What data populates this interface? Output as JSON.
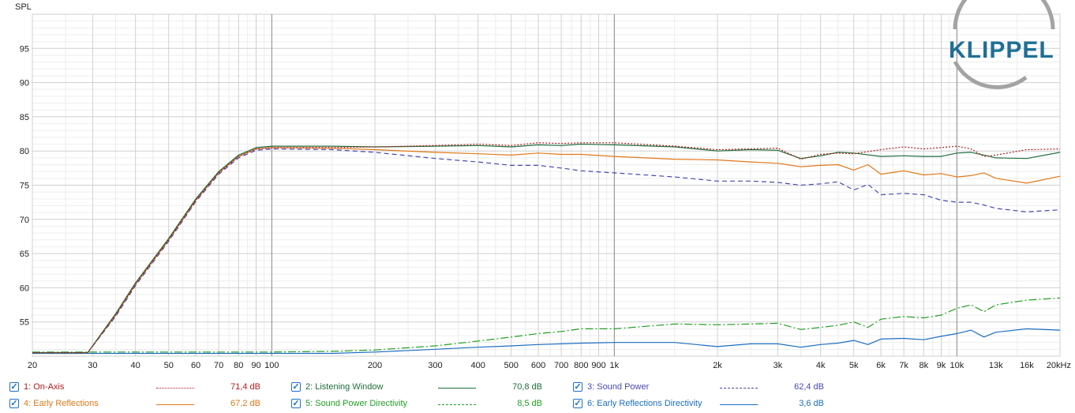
{
  "chart_data": {
    "type": "line",
    "ylabel": "SPL",
    "xscale": "log",
    "xlim": [
      20,
      20000
    ],
    "ylim": [
      50,
      100
    ],
    "yticks": [
      55,
      60,
      65,
      70,
      75,
      80,
      85,
      90,
      95
    ],
    "xtick_labels": [
      {
        "x": 20,
        "label": "20"
      },
      {
        "x": 30,
        "label": "30"
      },
      {
        "x": 40,
        "label": "40"
      },
      {
        "x": 50,
        "label": "50"
      },
      {
        "x": 60,
        "label": "60"
      },
      {
        "x": 70,
        "label": "70"
      },
      {
        "x": 80,
        "label": "80"
      },
      {
        "x": 90,
        "label": "90"
      },
      {
        "x": 100,
        "label": "100"
      },
      {
        "x": 200,
        "label": "200"
      },
      {
        "x": 300,
        "label": "300"
      },
      {
        "x": 400,
        "label": "400"
      },
      {
        "x": 500,
        "label": "500"
      },
      {
        "x": 600,
        "label": "600"
      },
      {
        "x": 700,
        "label": "700"
      },
      {
        "x": 800,
        "label": "800"
      },
      {
        "x": 900,
        "label": "900"
      },
      {
        "x": 1000,
        "label": "1k"
      },
      {
        "x": 2000,
        "label": "2k"
      },
      {
        "x": 3000,
        "label": "3k"
      },
      {
        "x": 4000,
        "label": "4k"
      },
      {
        "x": 5000,
        "label": "5k"
      },
      {
        "x": 6000,
        "label": "6k"
      },
      {
        "x": 7000,
        "label": "7k"
      },
      {
        "x": 8000,
        "label": "8k"
      },
      {
        "x": 9000,
        "label": "9k"
      },
      {
        "x": 10000,
        "label": "10k"
      },
      {
        "x": 13000,
        "label": "13k"
      },
      {
        "x": 16000,
        "label": "16k"
      },
      {
        "x": 20000,
        "label": "20kHz"
      }
    ],
    "grid": true,
    "logo": "KLIPPEL",
    "series": [
      {
        "name": "1: On-Axis",
        "value": "71,4 dB",
        "color": "#b01c1c",
        "dash": "2,2",
        "x": [
          20,
          29,
          35,
          40,
          50,
          60,
          70,
          80,
          90,
          100,
          150,
          200,
          300,
          400,
          500,
          600,
          700,
          800,
          1000,
          1500,
          2000,
          2500,
          3000,
          3500,
          4000,
          4500,
          5000,
          6000,
          7000,
          8000,
          9000,
          10000,
          11000,
          12000,
          13000,
          16000,
          20000
        ],
        "y": [
          50.5,
          50.5,
          56,
          60.5,
          67,
          72.8,
          76.8,
          79.2,
          80.3,
          80.5,
          80.5,
          80.6,
          80.8,
          81,
          80.8,
          81.2,
          81.1,
          81.2,
          81.2,
          80.7,
          80.2,
          80.3,
          80.4,
          78.8,
          79.5,
          79.7,
          79.6,
          80.2,
          80.6,
          80.3,
          80.5,
          80.7,
          80.3,
          79.2,
          79.4,
          80.2,
          80.3
        ]
      },
      {
        "name": "2: Listening Window",
        "value": "70,8 dB",
        "color": "#1e6e3c",
        "dash": "",
        "x": [
          20,
          29,
          35,
          40,
          50,
          60,
          70,
          80,
          90,
          100,
          150,
          200,
          300,
          400,
          500,
          600,
          700,
          800,
          1000,
          1500,
          2000,
          2500,
          3000,
          3500,
          4000,
          4500,
          5000,
          6000,
          7000,
          8000,
          9000,
          10000,
          11000,
          12000,
          13000,
          16000,
          20000
        ],
        "y": [
          50.5,
          50.5,
          56.2,
          60.7,
          67.2,
          73,
          77,
          79.4,
          80.5,
          80.7,
          80.7,
          80.6,
          80.7,
          80.8,
          80.6,
          80.9,
          80.8,
          81,
          80.9,
          80.6,
          80,
          80.2,
          80.1,
          78.9,
          79.3,
          79.8,
          79.7,
          79.2,
          79.3,
          79.2,
          79.2,
          79.7,
          79.8,
          79.4,
          79,
          78.9,
          79.8
        ]
      },
      {
        "name": "3: Sound Power",
        "value": "62,4 dB",
        "color": "#4848b8",
        "dash": "6,4",
        "x": [
          20,
          29,
          35,
          40,
          50,
          60,
          70,
          80,
          90,
          100,
          150,
          200,
          300,
          400,
          500,
          600,
          700,
          800,
          1000,
          1500,
          2000,
          2500,
          3000,
          3500,
          4000,
          4500,
          5000,
          5500,
          6000,
          7000,
          8000,
          9000,
          10000,
          11000,
          12000,
          13000,
          16000,
          20000
        ],
        "y": [
          50.5,
          50.5,
          55.8,
          60.3,
          66.8,
          72.6,
          76.6,
          79,
          80.1,
          80.3,
          80.2,
          79.8,
          78.9,
          78.4,
          77.9,
          77.9,
          77.5,
          77.1,
          76.8,
          76.2,
          75.6,
          75.6,
          75.4,
          75,
          75.2,
          75.5,
          74.3,
          75.1,
          73.6,
          73.8,
          73.6,
          72.8,
          72.5,
          72.5,
          72.1,
          71.6,
          71.1,
          71.4
        ]
      },
      {
        "name": "4: Early Reflections",
        "value": "67,2 dB",
        "color": "#e07818",
        "dash": "",
        "x": [
          20,
          29,
          35,
          40,
          50,
          60,
          70,
          80,
          90,
          100,
          150,
          200,
          300,
          400,
          500,
          600,
          700,
          800,
          1000,
          1500,
          2000,
          2500,
          3000,
          3500,
          4000,
          4500,
          5000,
          5500,
          6000,
          7000,
          8000,
          9000,
          10000,
          11000,
          12000,
          13000,
          16000,
          20000
        ],
        "y": [
          50.5,
          50.5,
          56,
          60.5,
          67,
          72.8,
          76.8,
          79.2,
          80.3,
          80.5,
          80.4,
          80.2,
          79.8,
          79.6,
          79.4,
          79.7,
          79.5,
          79.5,
          79.2,
          78.8,
          78.7,
          78.4,
          78.2,
          77.7,
          77.9,
          78,
          77.2,
          78,
          76.6,
          77.1,
          76.5,
          76.7,
          76.2,
          76.4,
          76.8,
          76,
          75.3,
          76.3
        ]
      },
      {
        "name": "5: Sound Power Directivity",
        "value": "8,5 dB",
        "color": "#22a022",
        "dash": "10,3,2,3",
        "x": [
          20,
          100,
          150,
          200,
          300,
          400,
          500,
          600,
          700,
          800,
          1000,
          1500,
          2000,
          2500,
          3000,
          3500,
          4000,
          4500,
          5000,
          5500,
          6000,
          7000,
          8000,
          9000,
          10000,
          11000,
          12000,
          13000,
          16000,
          20000
        ],
        "y": [
          50.6,
          50.6,
          50.7,
          50.9,
          51.5,
          52.2,
          52.8,
          53.3,
          53.6,
          54,
          54,
          54.7,
          54.6,
          54.7,
          54.8,
          53.9,
          54.2,
          54.5,
          55,
          54.2,
          55.4,
          55.8,
          55.6,
          56,
          57,
          57.5,
          56.5,
          57.5,
          58.2,
          58.5
        ]
      },
      {
        "name": "6: Early Reflections Directivity",
        "value": "3,6 dB",
        "color": "#1a6ec0",
        "dash": "",
        "x": [
          20,
          100,
          150,
          200,
          300,
          400,
          500,
          600,
          700,
          800,
          1000,
          1500,
          2000,
          2500,
          3000,
          3500,
          4000,
          4500,
          5000,
          5500,
          6000,
          7000,
          8000,
          9000,
          10000,
          11000,
          12000,
          13000,
          16000,
          20000
        ],
        "y": [
          50.4,
          50.4,
          50.4,
          50.6,
          51,
          51.3,
          51.5,
          51.7,
          51.8,
          51.9,
          52,
          52,
          51.4,
          51.8,
          51.8,
          51.3,
          51.7,
          51.9,
          52.3,
          51.7,
          52.5,
          52.6,
          52.4,
          52.9,
          53.3,
          53.8,
          52.8,
          53.5,
          54,
          53.8
        ]
      }
    ]
  }
}
